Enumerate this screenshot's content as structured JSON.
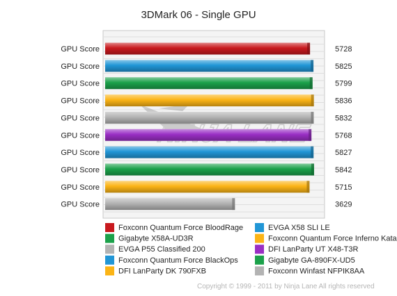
{
  "chart_data": {
    "type": "bar",
    "orientation": "horizontal",
    "title": "3DMark 06 - Single GPU",
    "xlabel": "",
    "ylabel": "",
    "xlim": [
      0,
      6000
    ],
    "grid": true,
    "legend_position": "bottom",
    "categories": [
      "GPU Score",
      "GPU Score",
      "GPU Score",
      "GPU Score",
      "GPU Score",
      "GPU Score",
      "GPU Score",
      "GPU Score",
      "GPU Score",
      "GPU Score"
    ],
    "series": [
      {
        "name": "Foxconn Quantum Force BloodRage",
        "value": 5728,
        "color": "#c8191e"
      },
      {
        "name": "EVGA X58 SLI LE",
        "value": 5825,
        "color": "#2196d6"
      },
      {
        "name": "Gigabyte X58A-UD3R",
        "value": 5799,
        "color": "#1ba14a"
      },
      {
        "name": "Foxconn Quantum Force Inferno Katana",
        "value": 5836,
        "color": "#fbb416"
      },
      {
        "name": "EVGA P55 Classified 200",
        "value": 5832,
        "color": "#b3b3b3"
      },
      {
        "name": "DFI LanParty UT X48-T3R",
        "value": 5768,
        "color": "#9a2fc4"
      },
      {
        "name": "Foxconn Quantum Force BlackOps",
        "value": 5827,
        "color": "#2196d6"
      },
      {
        "name": "Gigabyte GA-890FX-UD5",
        "value": 5842,
        "color": "#1ba14a"
      },
      {
        "name": "DFI LanParty DK 790FXB",
        "value": 5715,
        "color": "#fbb416"
      },
      {
        "name": "Foxconn Winfast NFPIK8AA",
        "value": 3629,
        "color": "#b3b3b3"
      }
    ]
  },
  "footer": {
    "copyright": "Copyright © 1999 - 2011 by Ninja Lane All rights reserved"
  }
}
